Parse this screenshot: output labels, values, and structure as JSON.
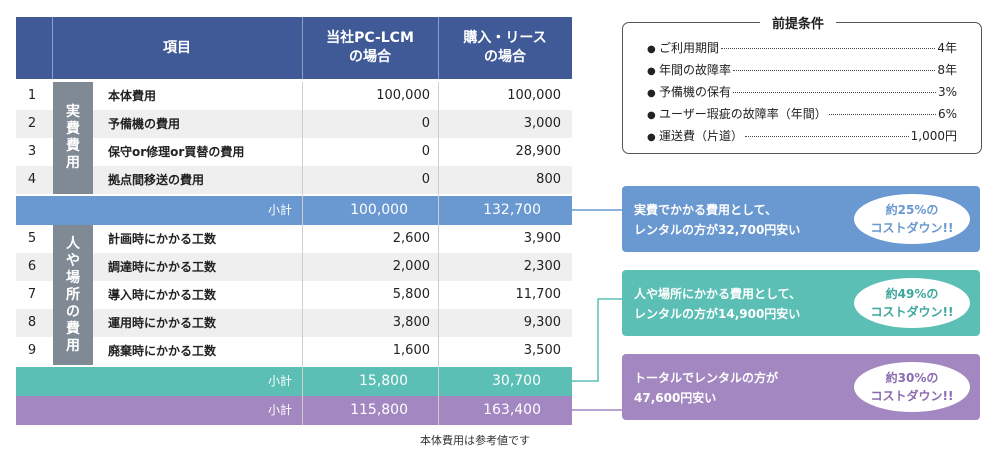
{
  "table": {
    "header": {
      "col_no": "",
      "col_item": "項目",
      "col_own_1": "当社PC-LCM",
      "col_own_2": "の場合",
      "col_buy_1": "購入・リース",
      "col_buy_2": "の場合"
    },
    "group1_label": [
      "実",
      "費",
      "費",
      "用"
    ],
    "group2_label": [
      "人",
      "や",
      "場",
      "所",
      "の",
      "費",
      "用"
    ],
    "rows": [
      {
        "no": "1",
        "item": "本体費用",
        "own": "100,000",
        "buy": "100,000"
      },
      {
        "no": "2",
        "item": "予備機の費用",
        "own": "0",
        "buy": "3,000"
      },
      {
        "no": "3",
        "item": "保守or修理or買替の費用",
        "own": "0",
        "buy": "28,900"
      },
      {
        "no": "4",
        "item": "拠点間移送の費用",
        "own": "0",
        "buy": "800"
      },
      {
        "no": "5",
        "item": "計画時にかかる工数",
        "own": "2,600",
        "buy": "3,900"
      },
      {
        "no": "6",
        "item": "調達時にかかる工数",
        "own": "2,000",
        "buy": "2,300"
      },
      {
        "no": "7",
        "item": "導入時にかかる工数",
        "own": "5,800",
        "buy": "11,700"
      },
      {
        "no": "8",
        "item": "運用時にかかる工数",
        "own": "3,800",
        "buy": "9,300"
      },
      {
        "no": "9",
        "item": "廃棄時にかかる工数",
        "own": "1,600",
        "buy": "3,500"
      }
    ],
    "subtotal1": {
      "label": "小計",
      "own": "100,000",
      "buy": "132,700"
    },
    "subtotal2": {
      "label": "小計",
      "own": "15,800",
      "buy": "30,700"
    },
    "subtotal3": {
      "label": "小計",
      "own": "115,800",
      "buy": "163,400"
    },
    "note": "本体費用は参考値です"
  },
  "premises": {
    "title": "前提条件",
    "items": [
      {
        "label": "ご利用期間",
        "value": "4年"
      },
      {
        "label": "年間の故障率",
        "value": "8年"
      },
      {
        "label": "予備機の保有",
        "value": "3%"
      },
      {
        "label": "ユーザー瑕疵の故障率（年間）",
        "value": "6%"
      },
      {
        "label": "運送費（片道）",
        "value": "1,000円"
      }
    ]
  },
  "callouts": [
    {
      "line1": "実費でかかる費用として、",
      "line2": "レンタルの方が32,700円安い",
      "badge1": "約25%の",
      "badge2": "コストダウン!!",
      "color": "#6a98d0"
    },
    {
      "line1": "人や場所にかかる費用として、",
      "line2": "レンタルの方が14,900円安い",
      "badge1": "約49%の",
      "badge2": "コストダウン!!",
      "color": "#5bbfb5"
    },
    {
      "line1": "トータルでレンタルの方が",
      "line2": "47,600円安い",
      "badge1": "約30%の",
      "badge2": "コストダウン!!",
      "color": "#a287c0"
    }
  ],
  "colors": {
    "header": "#3f5a96",
    "sub_blue": "#6a98d0",
    "sub_teal": "#5bbfb5",
    "sub_purple": "#a287c0",
    "group": "#7f8a95"
  }
}
